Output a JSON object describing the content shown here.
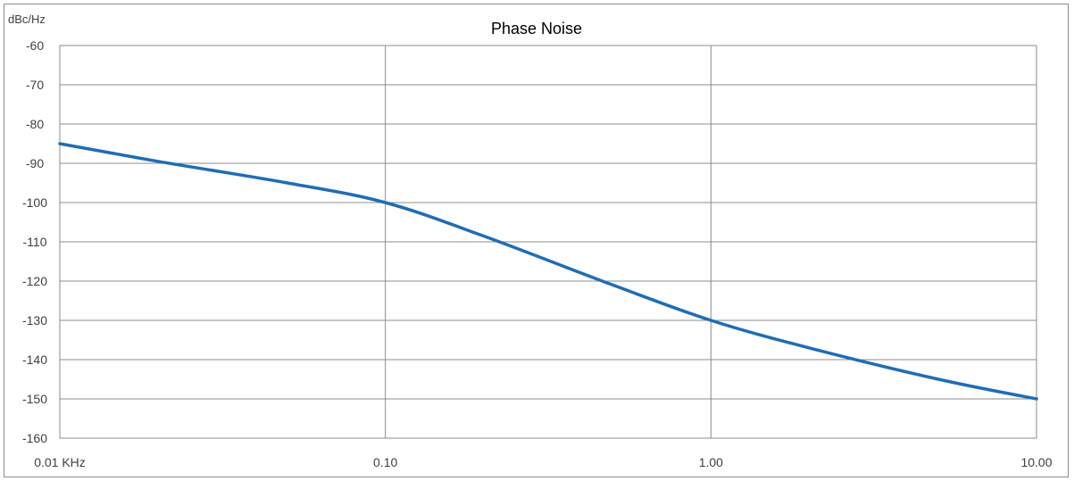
{
  "chart_data": {
    "type": "line",
    "title": "Phase Noise",
    "ylabel": "dBc/Hz",
    "xscale": "log",
    "xlim": [
      0.01,
      10
    ],
    "ylim": [
      -160,
      -60
    ],
    "grid": true,
    "x_tick_labels": [
      "0.01 KHz",
      "0.10",
      "1.00",
      "10.00"
    ],
    "y_tick_labels": [
      "-60",
      "-70",
      "-80",
      "-90",
      "-100",
      "-110",
      "-120",
      "-130",
      "-140",
      "-150",
      "-160"
    ],
    "series": [
      {
        "color": "#1f6db5",
        "x": [
          0.01,
          0.02,
          0.05,
          0.1,
          0.2,
          0.5,
          1,
          2,
          5,
          10
        ],
        "y": [
          -85,
          -89.5,
          -95,
          -100,
          -108.5,
          -121,
          -130,
          -137,
          -145,
          -150
        ]
      }
    ]
  }
}
